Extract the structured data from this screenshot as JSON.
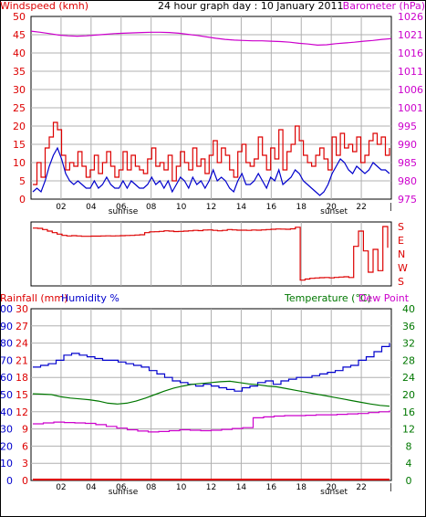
{
  "title": "24 hour graph day : 10 January 2011",
  "colors": {
    "wind": "#dd0000",
    "gust": "#ff0000",
    "avg_wind": "#0000cc",
    "barometer": "#cc00cc",
    "direction": "#dd0000",
    "rain": "#dd0000",
    "humidity": "#0000cc",
    "temperature": "#007700",
    "dewpoint": "#cc00cc",
    "grid": "#b0b0b0"
  },
  "x_axis": {
    "ticks": [
      "02",
      "04",
      "06",
      "08",
      "10",
      "12",
      "14",
      "16",
      "18",
      "20",
      "22"
    ],
    "sunrise_label": "sunrise",
    "sunset_label": "sunset",
    "end_label": "|"
  },
  "chart_data": [
    {
      "type": "line",
      "name": "wind-barometer",
      "left_axis_label": "Windspeed (kmh)",
      "right_axis_label": "Barometer (hPa)",
      "left_ticks": [
        "0",
        "5",
        "10",
        "15",
        "20",
        "25",
        "30",
        "35",
        "40",
        "45",
        "50"
      ],
      "right_ticks": [
        "975",
        "980",
        "985",
        "990",
        "995",
        "1001",
        "1006",
        "1011",
        "1016",
        "1021",
        "1026"
      ],
      "ylim_left": [
        0,
        50
      ],
      "ylim_right": [
        975,
        1026
      ],
      "series": [
        {
          "key": "wind",
          "values": [
            4,
            10,
            6,
            14,
            17,
            21,
            19,
            12,
            8,
            10,
            9,
            13,
            9,
            6,
            8,
            12,
            7,
            10,
            13,
            9,
            6,
            8,
            13,
            8,
            12,
            9,
            8,
            7,
            11,
            14,
            9,
            10,
            8,
            12,
            5,
            9,
            13,
            10,
            8,
            14,
            9,
            11,
            7,
            12,
            16,
            10,
            14,
            12,
            8,
            6,
            13,
            15,
            10,
            9,
            11,
            17,
            12,
            8,
            14,
            11,
            19,
            8,
            13,
            15,
            20,
            16,
            12,
            10,
            9,
            12,
            14,
            11,
            8,
            17,
            12,
            18,
            14,
            15,
            13,
            17,
            10,
            12,
            16,
            18,
            15,
            17,
            12,
            14
          ]
        },
        {
          "key": "avg_wind",
          "values": [
            2,
            3,
            2,
            5,
            9,
            12,
            14,
            11,
            7,
            5,
            4,
            5,
            4,
            3,
            3,
            5,
            3,
            4,
            6,
            4,
            3,
            3,
            5,
            3,
            5,
            4,
            3,
            3,
            4,
            6,
            4,
            5,
            3,
            5,
            2,
            4,
            6,
            5,
            3,
            6,
            4,
            5,
            3,
            5,
            8,
            5,
            6,
            5,
            3,
            2,
            5,
            7,
            4,
            4,
            5,
            7,
            5,
            3,
            6,
            5,
            8,
            4,
            5,
            6,
            8,
            7,
            5,
            4,
            3,
            2,
            1,
            2,
            4,
            7,
            9,
            11,
            10,
            8,
            7,
            9,
            8,
            7,
            8,
            10,
            9,
            8,
            8,
            7
          ]
        },
        {
          "key": "barometer",
          "values": [
            1021.9,
            1021.6,
            1021.2,
            1020.8,
            1020.6,
            1020.5,
            1020.6,
            1020.8,
            1021.0,
            1021.2,
            1021.3,
            1021.4,
            1021.5,
            1021.6,
            1021.6,
            1021.5,
            1021.3,
            1021.0,
            1020.7,
            1020.3,
            1019.9,
            1019.6,
            1019.4,
            1019.3,
            1019.2,
            1019.2,
            1019.1,
            1019.0,
            1018.8,
            1018.5,
            1018.3,
            1018.0,
            1018.1,
            1018.4,
            1018.6,
            1018.8,
            1019.1,
            1019.3,
            1019.6,
            1019.8
          ]
        }
      ]
    },
    {
      "type": "line",
      "name": "wind-direction",
      "right_ticks": [
        "S",
        "E",
        "N",
        "W",
        "S"
      ],
      "series": [
        {
          "key": "direction",
          "values": [
            170,
            168,
            160,
            150,
            140,
            130,
            122,
            118,
            120,
            118,
            116,
            116,
            117,
            117,
            118,
            119,
            118,
            119,
            120,
            121,
            122,
            124,
            126,
            140,
            145,
            146,
            148,
            152,
            150,
            147,
            148,
            150,
            152,
            155,
            153,
            157,
            158,
            155,
            152,
            155,
            160,
            158,
            156,
            156,
            155,
            157,
            156,
            158,
            160,
            162,
            164,
            163,
            162,
            165,
            175,
            188,
            195,
            200,
            202,
            204,
            205,
            203,
            206,
            208,
            210,
            205,
            50,
            150,
            20,
            240,
            30,
            250,
            180,
            40
          ]
        }
      ]
    },
    {
      "type": "line",
      "name": "humidity-temperature",
      "rain_label": "Rainfall (mm)",
      "humidity_label": "Humidity %",
      "temperature_label": "Temperature (°C)",
      "dewpoint_label": "Dew Point",
      "rain_ticks": [
        "0",
        "3",
        "6",
        "9",
        "12",
        "15",
        "18",
        "21",
        "24",
        "27",
        "30"
      ],
      "humidity_ticks": [
        "0",
        "10",
        "20",
        "30",
        "40",
        "50",
        "60",
        "70",
        "80",
        "90",
        "100"
      ],
      "temp_ticks": [
        "0",
        "4",
        "8",
        "12",
        "16",
        "20",
        "24",
        "28",
        "32",
        "36",
        "40"
      ],
      "ylim_humidity": [
        0,
        100
      ],
      "ylim_temp": [
        0,
        40
      ],
      "series": [
        {
          "key": "humidity",
          "values": [
            66,
            67,
            68,
            70,
            73,
            74,
            73,
            72,
            71,
            70,
            70,
            69,
            68,
            67,
            66,
            64,
            62,
            60,
            58,
            57,
            56,
            55,
            56,
            55,
            54,
            53,
            52,
            54,
            55,
            57,
            58,
            56,
            58,
            59,
            60,
            60,
            61,
            62,
            63,
            64,
            66,
            67,
            70,
            72,
            75,
            78,
            80
          ]
        },
        {
          "key": "temperature",
          "values": [
            20.2,
            20.1,
            20.0,
            19.5,
            19.2,
            19.0,
            18.8,
            18.5,
            18.0,
            17.8,
            18.0,
            18.5,
            19.2,
            20.0,
            20.8,
            21.5,
            22.0,
            22.4,
            22.6,
            22.8,
            23.0,
            23.1,
            22.8,
            22.5,
            22.3,
            22.0,
            21.8,
            21.4,
            21.0,
            20.6,
            20.2,
            19.8,
            19.4,
            19.0,
            18.6,
            18.2,
            17.8,
            17.5,
            17.3
          ]
        },
        {
          "key": "dewpoint",
          "values": [
            13.2,
            13.4,
            13.6,
            13.5,
            13.4,
            13.3,
            13.0,
            12.6,
            12.2,
            11.8,
            11.5,
            11.3,
            11.4,
            11.6,
            11.8,
            11.7,
            11.6,
            11.7,
            11.9,
            12.1,
            12.3,
            14.6,
            14.8,
            15.0,
            15.1,
            15.1,
            15.2,
            15.3,
            15.3,
            15.4,
            15.5,
            15.6,
            15.8,
            16.0,
            16.3
          ]
        },
        {
          "key": "rain",
          "values": [
            0,
            0,
            0,
            0,
            0,
            0,
            0,
            0,
            0,
            0,
            0,
            0
          ]
        }
      ]
    }
  ]
}
